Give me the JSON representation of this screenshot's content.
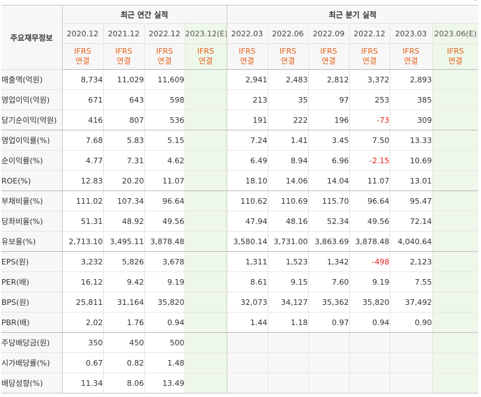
{
  "corner_mark": "·",
  "header": {
    "label_title": "주요재무정보",
    "annual_title": "최근 연간 실적",
    "quarter_title": "최근 분기 실적",
    "periods": [
      "2020.12",
      "2021.12",
      "2022.12",
      "2023.12(E)",
      "2022.03",
      "2022.06",
      "2022.09",
      "2022.12",
      "2023.03",
      "2023.06(E)"
    ],
    "basis_line1": "IFRS",
    "basis_line2": "연결"
  },
  "rows": [
    {
      "label": "매출액(억원)",
      "values": [
        "8,734",
        "11,029",
        "11,609",
        "",
        "2,941",
        "2,483",
        "2,812",
        "3,372",
        "2,893",
        ""
      ]
    },
    {
      "label": "영업이익(억원)",
      "values": [
        "671",
        "643",
        "598",
        "",
        "213",
        "35",
        "97",
        "253",
        "385",
        ""
      ]
    },
    {
      "label": "당기순이익(억원)",
      "values": [
        "416",
        "807",
        "536",
        "",
        "191",
        "222",
        "196",
        "-73",
        "309",
        ""
      ]
    },
    {
      "label": "영업이익률(%)",
      "values": [
        "7.68",
        "5.83",
        "5.15",
        "",
        "7.24",
        "1.41",
        "3.45",
        "7.50",
        "13.33",
        ""
      ]
    },
    {
      "label": "순이익률(%)",
      "values": [
        "4.77",
        "7.31",
        "4.62",
        "",
        "6.49",
        "8.94",
        "6.96",
        "-2.15",
        "10.69",
        ""
      ]
    },
    {
      "label": "ROE(%)",
      "values": [
        "12.83",
        "20.20",
        "11.07",
        "",
        "18.10",
        "14.06",
        "14.04",
        "11.07",
        "13.01",
        ""
      ]
    },
    {
      "label": "부채비율(%)",
      "values": [
        "111.02",
        "107.34",
        "96.64",
        "",
        "110.62",
        "110.69",
        "115.70",
        "96.64",
        "95.47",
        ""
      ]
    },
    {
      "label": "당좌비율(%)",
      "values": [
        "51.31",
        "48.92",
        "49.56",
        "",
        "47.94",
        "48.16",
        "52.34",
        "49.56",
        "72.14",
        ""
      ]
    },
    {
      "label": "유보율(%)",
      "values": [
        "2,713.10",
        "3,495.11",
        "3,878.48",
        "",
        "3,580.14",
        "3,731.00",
        "3,863.69",
        "3,878.48",
        "4,040.64",
        ""
      ]
    },
    {
      "label": "EPS(원)",
      "values": [
        "3,232",
        "5,826",
        "3,678",
        "",
        "1,311",
        "1,523",
        "1,342",
        "-498",
        "2,123",
        ""
      ]
    },
    {
      "label": "PER(배)",
      "values": [
        "16.12",
        "9.42",
        "9.19",
        "",
        "8.61",
        "9.15",
        "7.60",
        "9.19",
        "7.55",
        ""
      ]
    },
    {
      "label": "BPS(원)",
      "values": [
        "25,811",
        "31,164",
        "35,820",
        "",
        "32,073",
        "34,127",
        "35,362",
        "35,820",
        "37,492",
        ""
      ]
    },
    {
      "label": "PBR(배)",
      "values": [
        "2.02",
        "1.76",
        "0.94",
        "",
        "1.44",
        "1.18",
        "0.97",
        "0.94",
        "0.90",
        ""
      ]
    },
    {
      "label": "주당배당금(원)",
      "values": [
        "350",
        "450",
        "500",
        "",
        "",
        "",
        "",
        "",
        "",
        ""
      ]
    },
    {
      "label": "시가배당률(%)",
      "values": [
        "0.67",
        "0.82",
        "1.48",
        "",
        "",
        "",
        "",
        "",
        "",
        ""
      ]
    },
    {
      "label": "배당성향(%)",
      "values": [
        "11.34",
        "8.06",
        "13.49",
        "",
        "",
        "",
        "",
        "",
        "",
        ""
      ]
    }
  ],
  "group_end_rows": [
    2,
    5,
    8,
    12
  ],
  "colors": {
    "estimate_bg": "#eef8ea",
    "ifrs_text": "#e8601a",
    "negative": "#e02020",
    "header_bg": "#f7f7f7"
  }
}
